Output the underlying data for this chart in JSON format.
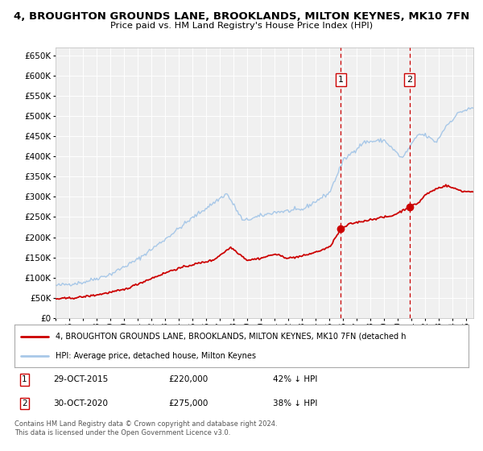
{
  "title": "4, BROUGHTON GROUNDS LANE, BROOKLANDS, MILTON KEYNES, MK10 7FN",
  "subtitle": "Price paid vs. HM Land Registry's House Price Index (HPI)",
  "hpi_color": "#a8c8e8",
  "price_color": "#cc0000",
  "point1_date_x": 2015.83,
  "point2_date_x": 2020.83,
  "point1_price": 220000,
  "point2_price": 275000,
  "vline_color": "#cc0000",
  "legend_line1": "4, BROUGHTON GROUNDS LANE, BROOKLANDS, MILTON KEYNES, MK10 7FN (detached h",
  "legend_line2": "HPI: Average price, detached house, Milton Keynes",
  "table_row1_num": "1",
  "table_row1_date": "29-OCT-2015",
  "table_row1_price": "£220,000",
  "table_row1_hpi": "42% ↓ HPI",
  "table_row2_num": "2",
  "table_row2_date": "30-OCT-2020",
  "table_row2_price": "£275,000",
  "table_row2_hpi": "38% ↓ HPI",
  "footer1": "Contains HM Land Registry data © Crown copyright and database right 2024.",
  "footer2": "This data is licensed under the Open Government Licence v3.0.",
  "ylim_min": 0,
  "ylim_max": 670000,
  "xlim_min": 1995,
  "xlim_max": 2025.5,
  "background_color": "#ffffff",
  "plot_bg_color": "#f0f0f0",
  "grid_color": "#ffffff"
}
